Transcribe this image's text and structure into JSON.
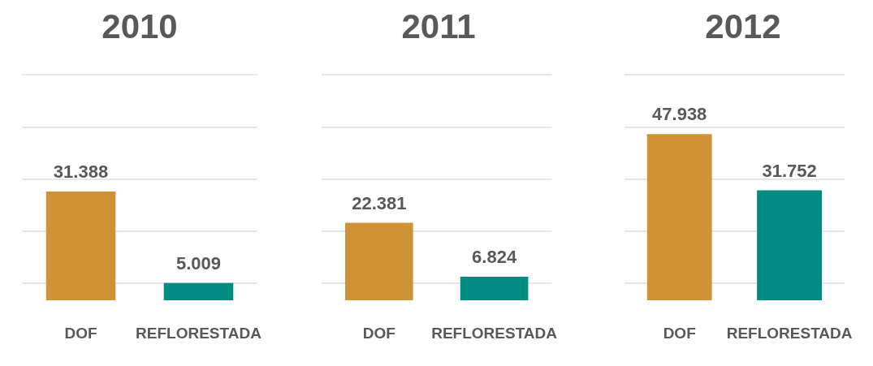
{
  "chart_data": [
    {
      "type": "bar",
      "title": "2010",
      "categories": [
        "DOF",
        "REFLORESTADA"
      ],
      "values": [
        31388,
        5009
      ],
      "colors": [
        "#cf9336",
        "#008c82"
      ],
      "value_labels": [
        "31.388",
        "5.009"
      ],
      "ylim": [
        0,
        65000
      ],
      "yticks": [
        {
          "value": 5000,
          "label": null
        },
        {
          "value": 20000,
          "label": null
        },
        {
          "value": 35000,
          "label": null
        },
        {
          "value": 50000,
          "label": null
        },
        {
          "value": 65000,
          "label": null
        }
      ],
      "grid": "y",
      "tick_labels": "x"
    },
    {
      "type": "bar",
      "title": "2011",
      "categories": [
        "DOF",
        "REFLORESTADA"
      ],
      "values": [
        22381,
        6824
      ],
      "colors": [
        "#cf9336",
        "#008c82"
      ],
      "value_labels": [
        "22.381",
        "6.824"
      ],
      "ylim": [
        0,
        65000
      ],
      "yticks": [
        {
          "value": 5000,
          "label": null
        },
        {
          "value": 20000,
          "label": null
        },
        {
          "value": 35000,
          "label": null
        },
        {
          "value": 50000,
          "label": null
        },
        {
          "value": 65000,
          "label": null
        }
      ],
      "grid": "y",
      "tick_labels": "x"
    },
    {
      "type": "bar",
      "title": "2012",
      "categories": [
        "DOF",
        "REFLORESTADA"
      ],
      "values": [
        47938,
        31752
      ],
      "colors": [
        "#cf9336",
        "#008c82"
      ],
      "value_labels": [
        "47.938",
        "31.752"
      ],
      "ylim": [
        0,
        65000
      ],
      "yticks": [
        {
          "value": 5000,
          "label": null
        },
        {
          "value": 20000,
          "label": null
        },
        {
          "value": 35000,
          "label": null
        },
        {
          "value": 50000,
          "label": null
        },
        {
          "value": 65000,
          "label": null
        }
      ],
      "grid": "y",
      "tick_labels": "x"
    }
  ]
}
